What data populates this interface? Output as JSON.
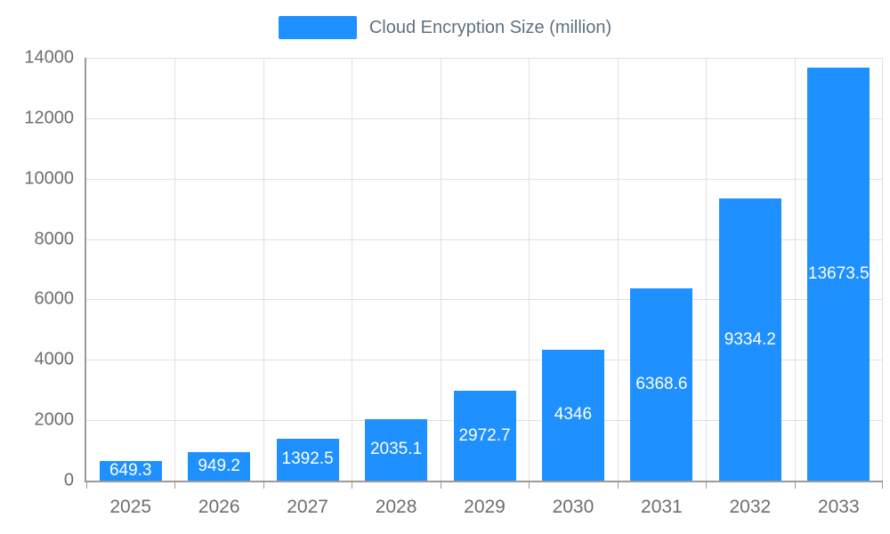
{
  "legend": {
    "label": "Cloud Encryption Size (million)"
  },
  "chart_data": {
    "type": "bar",
    "title": "Cloud Encryption Size (million)",
    "categories": [
      "2025",
      "2026",
      "2027",
      "2028",
      "2029",
      "2030",
      "2031",
      "2032",
      "2033"
    ],
    "values": [
      649.3,
      949.2,
      1392.5,
      2035.1,
      2972.7,
      4346,
      6368.6,
      9334.2,
      13673.5
    ],
    "xlabel": "",
    "ylabel": "",
    "ylim": [
      0,
      14000
    ],
    "ytick_step": 2000,
    "yticks": [
      0,
      2000,
      4000,
      6000,
      8000,
      10000,
      12000,
      14000
    ],
    "bar_color": "#1e90ff",
    "value_label_color": "#ffffff",
    "grid": true,
    "legend_position": "top"
  }
}
